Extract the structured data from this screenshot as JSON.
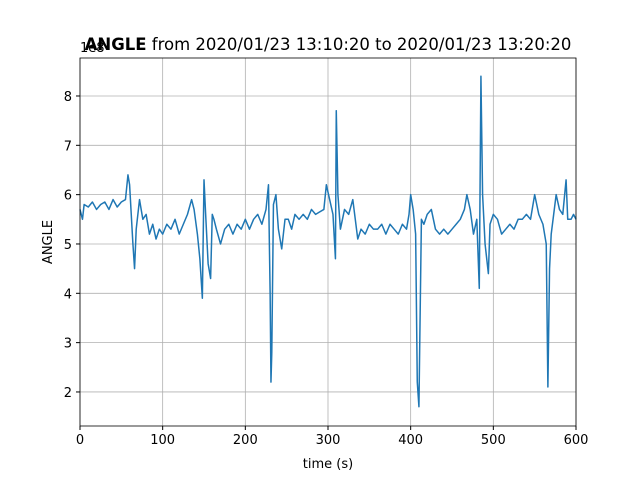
{
  "chart_data": {
    "type": "line",
    "title": "ANGLE",
    "subtitle": "from 2020/01/23 13:10:20 to 2020/01/23 13:20:20",
    "x_label": "time (s)",
    "y_label": "ANGLE",
    "y_offset_label": "1e8",
    "xlim": [
      0,
      600
    ],
    "xticks": [
      0,
      100,
      200,
      300,
      400,
      500,
      600
    ],
    "ylim": [
      1.31,
      8.77
    ],
    "yticks": [
      2,
      3,
      4,
      5,
      6,
      7,
      8
    ],
    "grid": true,
    "x": [
      0,
      3,
      5,
      10,
      15,
      20,
      25,
      30,
      35,
      40,
      45,
      50,
      55,
      58,
      60,
      62,
      64,
      66,
      68,
      72,
      76,
      80,
      84,
      88,
      92,
      96,
      100,
      105,
      110,
      115,
      120,
      125,
      130,
      135,
      138,
      142,
      145,
      148,
      150,
      152,
      155,
      158,
      160,
      162,
      165,
      170,
      175,
      180,
      185,
      190,
      195,
      200,
      205,
      210,
      215,
      220,
      225,
      228,
      230,
      231,
      232,
      234,
      237,
      240,
      244,
      248,
      252,
      256,
      260,
      265,
      270,
      275,
      280,
      285,
      290,
      295,
      298,
      302,
      306,
      309,
      310,
      312,
      315,
      320,
      325,
      330,
      333,
      336,
      340,
      345,
      350,
      355,
      360,
      365,
      370,
      375,
      380,
      385,
      390,
      395,
      398,
      400,
      403,
      406,
      408,
      410,
      411,
      413,
      416,
      420,
      425,
      430,
      435,
      440,
      445,
      450,
      455,
      460,
      465,
      468,
      472,
      476,
      480,
      483,
      485,
      487,
      490,
      494,
      496,
      500,
      505,
      510,
      515,
      520,
      525,
      530,
      535,
      540,
      545,
      550,
      555,
      560,
      564,
      566,
      568,
      570,
      573,
      576,
      580,
      584,
      588,
      590,
      594,
      597,
      600
    ],
    "series": [
      {
        "name": "ANGLE",
        "color": "#1f77b4",
        "values": [
          5.7,
          5.5,
          5.8,
          5.75,
          5.85,
          5.7,
          5.8,
          5.85,
          5.7,
          5.9,
          5.75,
          5.85,
          5.9,
          6.4,
          6.2,
          5.6,
          5.0,
          4.5,
          5.3,
          5.9,
          5.5,
          5.6,
          5.2,
          5.4,
          5.1,
          5.3,
          5.2,
          5.4,
          5.3,
          5.5,
          5.2,
          5.4,
          5.6,
          5.9,
          5.7,
          5.2,
          4.7,
          3.9,
          6.3,
          5.6,
          4.6,
          4.3,
          5.6,
          5.5,
          5.3,
          5.0,
          5.3,
          5.4,
          5.2,
          5.4,
          5.3,
          5.5,
          5.3,
          5.5,
          5.6,
          5.4,
          5.7,
          6.2,
          4.0,
          2.2,
          2.8,
          5.8,
          6.0,
          5.3,
          4.9,
          5.5,
          5.5,
          5.3,
          5.6,
          5.5,
          5.6,
          5.5,
          5.7,
          5.6,
          5.65,
          5.7,
          6.2,
          5.9,
          5.6,
          4.7,
          7.7,
          6.0,
          5.3,
          5.7,
          5.6,
          5.9,
          5.5,
          5.1,
          5.3,
          5.2,
          5.4,
          5.3,
          5.3,
          5.4,
          5.2,
          5.4,
          5.3,
          5.2,
          5.4,
          5.3,
          5.6,
          6.0,
          5.7,
          5.2,
          2.2,
          1.7,
          3.0,
          5.5,
          5.4,
          5.6,
          5.7,
          5.3,
          5.2,
          5.3,
          5.2,
          5.3,
          5.4,
          5.5,
          5.7,
          6.0,
          5.7,
          5.2,
          5.5,
          4.1,
          8.4,
          6.0,
          5.0,
          4.4,
          5.4,
          5.6,
          5.5,
          5.2,
          5.3,
          5.4,
          5.3,
          5.5,
          5.5,
          5.6,
          5.5,
          6.0,
          5.6,
          5.4,
          5.0,
          2.1,
          4.5,
          5.2,
          5.6,
          6.0,
          5.7,
          5.6,
          6.3,
          5.5,
          5.5,
          5.6,
          5.5
        ]
      }
    ]
  }
}
